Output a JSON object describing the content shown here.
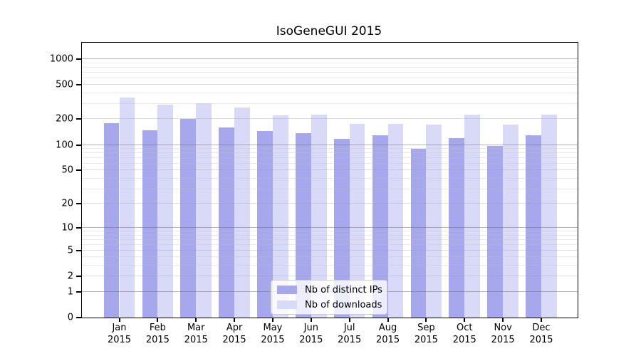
{
  "title": "IsoGeneGUI 2015",
  "chart_data": {
    "type": "bar",
    "title": "IsoGeneGUI 2015",
    "categories": [
      "Jan",
      "Feb",
      "Mar",
      "Apr",
      "May",
      "Jun",
      "Jul",
      "Aug",
      "Sep",
      "Oct",
      "Nov",
      "Dec"
    ],
    "category_year": "2015",
    "series": [
      {
        "name": "Nb of distinct IPs",
        "color": "#a7a7ee",
        "values": [
          180,
          148,
          200,
          159,
          145,
          137,
          117,
          130,
          90,
          119,
          97,
          130
        ]
      },
      {
        "name": "Nb of downloads",
        "color": "#d9d9f8",
        "values": [
          355,
          295,
          308,
          276,
          221,
          224,
          177,
          177,
          173,
          226,
          173,
          224
        ]
      }
    ],
    "xlabel": "",
    "ylabel": "",
    "yscale": "log1p",
    "ylim": [
      0,
      1550
    ],
    "yticks": [
      0,
      1,
      2,
      5,
      10,
      20,
      50,
      100,
      200,
      500,
      1000
    ],
    "ytick_decades": [
      1,
      10,
      100,
      1000
    ],
    "ytick_minors": [
      3,
      4,
      6,
      7,
      8,
      9,
      30,
      40,
      60,
      70,
      80,
      90,
      300,
      400,
      600,
      700,
      800,
      900
    ],
    "grid": true,
    "legend_position": "lower center",
    "colors": {
      "distinct_ips": "#a7a7ee",
      "downloads": "#d9d9f8",
      "grid_major": "#b7b7b7",
      "grid_minor": "#e6e6e6",
      "axis": "#000000",
      "legend_border": "#cccccc"
    }
  }
}
